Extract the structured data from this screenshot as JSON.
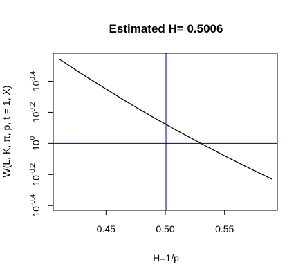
{
  "chart_data": {
    "type": "line",
    "title": "Estimated H= 0.5006",
    "xlabel": "H=1/p",
    "ylabel": "W(L, K, π, p, t = 1, X)",
    "xlim": [
      0.4055,
      0.5945
    ],
    "ylim_log10": [
      -0.43,
      0.58
    ],
    "y_scale": "log10",
    "x_ticks": [
      0.45,
      0.5,
      0.55
    ],
    "x_tick_labels": [
      "0.45",
      "0.50",
      "0.55"
    ],
    "y_ticks_log10": [
      -0.4,
      -0.2,
      0,
      0.2,
      0.4
    ],
    "y_tick_labels": [
      {
        "base": "10",
        "exp": "-0.4"
      },
      {
        "base": "10",
        "exp": "-0.2"
      },
      {
        "base": "10",
        "exp": "0"
      },
      {
        "base": "10",
        "exp": "0.2"
      },
      {
        "base": "10",
        "exp": "0.4"
      }
    ],
    "series": [
      {
        "color": "#000000",
        "x": [
          0.41,
          0.43,
          0.45,
          0.47,
          0.49,
          0.5,
          0.51,
          0.53,
          0.55,
          0.57,
          0.59
        ],
        "log10_y": [
          0.545,
          0.445,
          0.35,
          0.256,
          0.167,
          0.125,
          0.082,
          0.0,
          -0.08,
          -0.156,
          -0.23
        ]
      }
    ],
    "reference_lines": {
      "color": "#000080",
      "vertical_x": 0.5006,
      "horizontal_log10_y": 0
    },
    "grid": false,
    "legend": "none"
  }
}
